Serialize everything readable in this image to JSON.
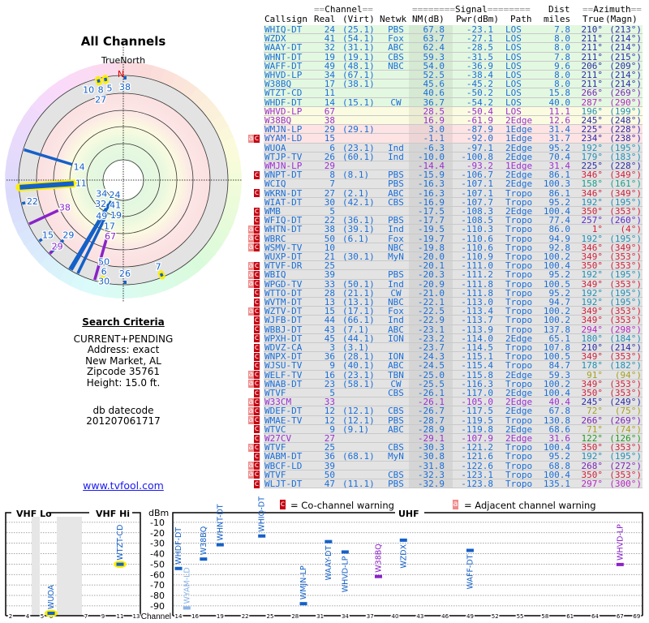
{
  "polar": {
    "title": "All Channels",
    "north_label": "TrueNorth",
    "north_mark": "N"
  },
  "search": {
    "heading": "Search Criteria",
    "lines": [
      "CURRENT+PENDING",
      "Address: exact",
      "New Market, AL",
      "Zipcode 35761",
      "Height: 15.0 ft."
    ],
    "db_label": "db datecode",
    "db_value": "201207061717"
  },
  "link": "www.tvfool.com",
  "table_header": {
    "group_channel": "Channel",
    "group_signal": "Signal",
    "group_dist": "Dist",
    "group_azimuth": "Azimuth",
    "callsign": "Callsign",
    "real": "Real",
    "virt": "(Virt)",
    "netwk": "Netwk",
    "nm": "NM(dB)",
    "pwr": "Pwr(dBm)",
    "path": "Path",
    "miles": "miles",
    "true": "True",
    "magn": "(Magn)"
  },
  "colors": {
    "blue": "#1a6ed8",
    "purple": "#9b2fd3",
    "navy": "#2b2ba8",
    "violet": "#7b22b8",
    "magenta": "#b526c0",
    "teal": "#1f8fb5",
    "red": "#d0203c",
    "teal_green": "#1a9e8a",
    "indigo": "#5a2ac8",
    "olive": "#a8a020",
    "green": "#1f9a1f",
    "cochannel": "#c40010",
    "adjacent": "#f08a8a"
  },
  "warnings": {
    "adjacent": "a",
    "cochannel": "c",
    "cochannel_text": "= Co-channel warning",
    "adjacent_text": "= Adjacent channel warning"
  },
  "stations": [
    {
      "call": "WHIQ-DT",
      "real": "24",
      "virt": "(25.1)",
      "net": "PBS",
      "nm": "67.8",
      "pwr": "-23.1",
      "path": "LOS",
      "dist": "7.8",
      "az": "210°",
      "mag": "(213°)",
      "bg": "green",
      "color": "blue",
      "az_color": "navy",
      "warn": ""
    },
    {
      "call": "WZDX",
      "real": "41",
      "virt": "(54.1)",
      "net": "Fox",
      "nm": "63.7",
      "pwr": "-27.1",
      "path": "LOS",
      "dist": "8.0",
      "az": "211°",
      "mag": "(214°)",
      "bg": "green",
      "color": "blue",
      "az_color": "navy",
      "warn": ""
    },
    {
      "call": "WAAY-DT",
      "real": "32",
      "virt": "(31.1)",
      "net": "ABC",
      "nm": "62.4",
      "pwr": "-28.5",
      "path": "LOS",
      "dist": "8.0",
      "az": "211°",
      "mag": "(214°)",
      "bg": "green",
      "color": "blue",
      "az_color": "navy",
      "warn": ""
    },
    {
      "call": "WHNT-DT",
      "real": "19",
      "virt": "(19.1)",
      "net": "CBS",
      "nm": "59.3",
      "pwr": "-31.5",
      "path": "LOS",
      "dist": "7.8",
      "az": "211°",
      "mag": "(215°)",
      "bg": "green",
      "color": "blue",
      "az_color": "navy",
      "warn": ""
    },
    {
      "call": "WAFF-DT",
      "real": "49",
      "virt": "(48.1)",
      "net": "NBC",
      "nm": "54.0",
      "pwr": "-36.9",
      "path": "LOS",
      "dist": "9.6",
      "az": "206°",
      "mag": "(209°)",
      "bg": "green",
      "color": "blue",
      "az_color": "navy",
      "warn": ""
    },
    {
      "call": "WHVD-LP",
      "real": "34",
      "virt": "(67.1)",
      "net": "",
      "nm": "52.5",
      "pwr": "-38.4",
      "path": "LOS",
      "dist": "8.0",
      "az": "211°",
      "mag": "(214°)",
      "bg": "green",
      "color": "blue",
      "az_color": "navy",
      "warn": ""
    },
    {
      "call": "W38BQ",
      "real": "17",
      "virt": "(38.1)",
      "net": "",
      "nm": "45.6",
      "pwr": "-45.2",
      "path": "LOS",
      "dist": "8.0",
      "az": "211°",
      "mag": "(214°)",
      "bg": "green",
      "color": "blue",
      "az_color": "navy",
      "warn": ""
    },
    {
      "call": "WTZT-CD",
      "real": "11",
      "virt": "",
      "net": "",
      "nm": "40.6",
      "pwr": "-50.2",
      "path": "LOS",
      "dist": "15.8",
      "az": "266°",
      "mag": "(269°)",
      "bg": "green",
      "color": "blue",
      "az_color": "violet",
      "warn": ""
    },
    {
      "call": "WHDF-DT",
      "real": "14",
      "virt": "(15.1)",
      "net": "CW",
      "nm": "36.7",
      "pwr": "-54.2",
      "path": "LOS",
      "dist": "40.0",
      "az": "287°",
      "mag": "(290°)",
      "bg": "green",
      "color": "blue",
      "az_color": "magenta",
      "warn": ""
    },
    {
      "call": "WHVD-LP",
      "real": "67",
      "virt": "",
      "net": "",
      "nm": "28.5",
      "pwr": "-50.4",
      "path": "LOS",
      "dist": "11.1",
      "az": "196°",
      "mag": "(199°)",
      "bg": "yellow",
      "color": "purple",
      "az_color": "teal",
      "warn": ""
    },
    {
      "call": "W38BQ",
      "real": "38",
      "virt": "",
      "net": "",
      "nm": "16.9",
      "pwr": "-61.9",
      "path": "2Edge",
      "dist": "12.6",
      "az": "245°",
      "mag": "(248°)",
      "bg": "yellow",
      "color": "purple",
      "az_color": "navy",
      "warn": ""
    },
    {
      "call": "WMJN-LP",
      "real": "29",
      "virt": "(29.1)",
      "net": "",
      "nm": "3.0",
      "pwr": "-87.9",
      "path": "1Edge",
      "dist": "31.4",
      "az": "225°",
      "mag": "(228°)",
      "bg": "pink",
      "color": "blue",
      "az_color": "navy",
      "warn": ""
    },
    {
      "call": "WYAM-LD",
      "real": "15",
      "virt": "",
      "net": "",
      "nm": "-1.1",
      "pwr": "-92.0",
      "path": "1Edge",
      "dist": "31.7",
      "az": "234°",
      "mag": "(238°)",
      "bg": "pink",
      "color": "blue",
      "az_color": "navy",
      "warn": "ac"
    },
    {
      "call": "WUOA",
      "real": "6",
      "virt": "(23.1)",
      "net": "Ind",
      "nm": "-6.3",
      "pwr": "-97.1",
      "path": "2Edge",
      "dist": "95.2",
      "az": "192°",
      "mag": "(195°)",
      "bg": "gray",
      "color": "blue",
      "az_color": "teal",
      "warn": ""
    },
    {
      "call": "WTJP-TV",
      "real": "26",
      "virt": "(60.1)",
      "net": "Ind",
      "nm": "-10.0",
      "pwr": "-100.8",
      "path": "2Edge",
      "dist": "70.4",
      "az": "179°",
      "mag": "(183°)",
      "bg": "gray",
      "color": "blue",
      "az_color": "teal",
      "warn": ""
    },
    {
      "call": "WMJN-LP",
      "real": "29",
      "virt": "",
      "net": "",
      "nm": "-14.4",
      "pwr": "-93.2",
      "path": "1Edge",
      "dist": "31.4",
      "az": "225°",
      "mag": "(228°)",
      "bg": "gray",
      "color": "purple",
      "az_color": "navy",
      "warn": ""
    },
    {
      "call": "WNPT-DT",
      "real": "8",
      "virt": "(8.1)",
      "net": "PBS",
      "nm": "-15.9",
      "pwr": "-106.7",
      "path": "2Edge",
      "dist": "86.1",
      "az": "346°",
      "mag": "(349°)",
      "bg": "gray",
      "color": "blue",
      "az_color": "red",
      "warn": "c"
    },
    {
      "call": "WCIQ",
      "real": "7",
      "virt": "",
      "net": "PBS",
      "nm": "-16.3",
      "pwr": "-107.1",
      "path": "2Edge",
      "dist": "100.3",
      "az": "158°",
      "mag": "(161°)",
      "bg": "gray",
      "color": "blue",
      "az_color": "teal_green",
      "warn": ""
    },
    {
      "call": "WKRN-DT",
      "real": "27",
      "virt": "(2.1)",
      "net": "ABC",
      "nm": "-16.3",
      "pwr": "-107.1",
      "path": "Tropo",
      "dist": "86.1",
      "az": "346°",
      "mag": "(349°)",
      "bg": "gray",
      "color": "blue",
      "az_color": "red",
      "warn": "c"
    },
    {
      "call": "WIAT-DT",
      "real": "30",
      "virt": "(42.1)",
      "net": "CBS",
      "nm": "-16.9",
      "pwr": "-107.7",
      "path": "Tropo",
      "dist": "95.2",
      "az": "192°",
      "mag": "(195°)",
      "bg": "gray",
      "color": "blue",
      "az_color": "teal",
      "warn": ""
    },
    {
      "call": "WMB",
      "real": "5",
      "virt": "",
      "net": "",
      "nm": "-17.5",
      "pwr": "-108.3",
      "path": "2Edge",
      "dist": "100.4",
      "az": "350°",
      "mag": "(353°)",
      "bg": "gray",
      "color": "blue",
      "az_color": "red",
      "warn": "c"
    },
    {
      "call": "WFIQ-DT",
      "real": "22",
      "virt": "(36.1)",
      "net": "PBS",
      "nm": "-17.7",
      "pwr": "-108.5",
      "path": "Tropo",
      "dist": "77.4",
      "az": "257°",
      "mag": "(260°)",
      "bg": "gray",
      "color": "blue",
      "az_color": "indigo",
      "warn": "c"
    },
    {
      "call": "WHTN-DT",
      "real": "38",
      "virt": "(39.1)",
      "net": "Ind",
      "nm": "-19.5",
      "pwr": "-110.3",
      "path": "Tropo",
      "dist": "86.0",
      "az": "1°",
      "mag": "(4°)",
      "bg": "gray",
      "color": "blue",
      "az_color": "red",
      "warn": "ac"
    },
    {
      "call": "WBRC",
      "real": "50",
      "virt": "(6.1)",
      "net": "Fox",
      "nm": "-19.7",
      "pwr": "-110.6",
      "path": "Tropo",
      "dist": "94.9",
      "az": "192°",
      "mag": "(195°)",
      "bg": "gray",
      "color": "blue",
      "az_color": "teal",
      "warn": "ac"
    },
    {
      "call": "WSMV-TV",
      "real": "10",
      "virt": "",
      "net": "NBC",
      "nm": "-19.8",
      "pwr": "-110.6",
      "path": "Tropo",
      "dist": "92.8",
      "az": "346°",
      "mag": "(349°)",
      "bg": "gray",
      "color": "blue",
      "az_color": "red",
      "warn": "ac"
    },
    {
      "call": "WUXP-DT",
      "real": "21",
      "virt": "(30.1)",
      "net": "MyN",
      "nm": "-20.0",
      "pwr": "-110.9",
      "path": "Tropo",
      "dist": "100.2",
      "az": "349°",
      "mag": "(353°)",
      "bg": "gray",
      "color": "blue",
      "az_color": "red",
      "warn": ""
    },
    {
      "call": "WTVF-DR",
      "real": "25",
      "virt": "",
      "net": "",
      "nm": "-20.1",
      "pwr": "-111.0",
      "path": "Tropo",
      "dist": "100.4",
      "az": "350°",
      "mag": "(353°)",
      "bg": "gray",
      "color": "blue",
      "az_color": "red",
      "warn": "ac"
    },
    {
      "call": "WBIQ",
      "real": "39",
      "virt": "",
      "net": "PBS",
      "nm": "-20.3",
      "pwr": "-111.2",
      "path": "Tropo",
      "dist": "95.2",
      "az": "192°",
      "mag": "(195°)",
      "bg": "gray",
      "color": "blue",
      "az_color": "teal",
      "warn": "ac"
    },
    {
      "call": "WPGD-TV",
      "real": "33",
      "virt": "(50.1)",
      "net": "Ind",
      "nm": "-20.9",
      "pwr": "-111.8",
      "path": "Tropo",
      "dist": "100.5",
      "az": "349°",
      "mag": "(353°)",
      "bg": "gray",
      "color": "blue",
      "az_color": "red",
      "warn": "ac"
    },
    {
      "call": "WTTO-DT",
      "real": "28",
      "virt": "(21.1)",
      "net": "CW",
      "nm": "-21.0",
      "pwr": "-111.8",
      "path": "Tropo",
      "dist": "95.2",
      "az": "192°",
      "mag": "(195°)",
      "bg": "gray",
      "color": "blue",
      "az_color": "teal",
      "warn": "c"
    },
    {
      "call": "WVTM-DT",
      "real": "13",
      "virt": "(13.1)",
      "net": "NBC",
      "nm": "-22.1",
      "pwr": "-113.0",
      "path": "Tropo",
      "dist": "94.7",
      "az": "192°",
      "mag": "(195°)",
      "bg": "gray",
      "color": "blue",
      "az_color": "teal",
      "warn": "c"
    },
    {
      "call": "WZTV-DT",
      "real": "15",
      "virt": "(17.1)",
      "net": "Fox",
      "nm": "-22.5",
      "pwr": "-113.4",
      "path": "Tropo",
      "dist": "100.2",
      "az": "349°",
      "mag": "(353°)",
      "bg": "gray",
      "color": "blue",
      "az_color": "red",
      "warn": "ac"
    },
    {
      "call": "WJFB-DT",
      "real": "44",
      "virt": "(66.1)",
      "net": "Ind",
      "nm": "-22.9",
      "pwr": "-113.7",
      "path": "Tropo",
      "dist": "100.2",
      "az": "349°",
      "mag": "(353°)",
      "bg": "gray",
      "color": "blue",
      "az_color": "red",
      "warn": "c"
    },
    {
      "call": "WBBJ-DT",
      "real": "43",
      "virt": "(7.1)",
      "net": "ABC",
      "nm": "-23.1",
      "pwr": "-113.9",
      "path": "Tropo",
      "dist": "137.8",
      "az": "294°",
      "mag": "(298°)",
      "bg": "gray",
      "color": "blue",
      "az_color": "magenta",
      "warn": "c"
    },
    {
      "call": "WPXH-DT",
      "real": "45",
      "virt": "(44.1)",
      "net": "ION",
      "nm": "-23.2",
      "pwr": "-114.0",
      "path": "2Edge",
      "dist": "65.1",
      "az": "180°",
      "mag": "(184°)",
      "bg": "gray",
      "color": "blue",
      "az_color": "teal",
      "warn": "c"
    },
    {
      "call": "WDVZ-CA",
      "real": "3",
      "virt": "(3.1)",
      "net": "",
      "nm": "-23.7",
      "pwr": "-114.5",
      "path": "Tropo",
      "dist": "107.8",
      "az": "210°",
      "mag": "(214°)",
      "bg": "gray",
      "color": "blue",
      "az_color": "navy",
      "warn": "c"
    },
    {
      "call": "WNPX-DT",
      "real": "36",
      "virt": "(28.1)",
      "net": "ION",
      "nm": "-24.3",
      "pwr": "-115.1",
      "path": "Tropo",
      "dist": "100.5",
      "az": "349°",
      "mag": "(353°)",
      "bg": "gray",
      "color": "blue",
      "az_color": "red",
      "warn": "c"
    },
    {
      "call": "WJSU-TV",
      "real": "9",
      "virt": "(40.1)",
      "net": "ABC",
      "nm": "-24.5",
      "pwr": "-115.4",
      "path": "Tropo",
      "dist": "84.7",
      "az": "178°",
      "mag": "(182°)",
      "bg": "gray",
      "color": "blue",
      "az_color": "teal",
      "warn": "c"
    },
    {
      "call": "WELF-TV",
      "real": "16",
      "virt": "(23.1)",
      "net": "TBN",
      "nm": "-25.0",
      "pwr": "-115.8",
      "path": "2Edge",
      "dist": "59.3",
      "az": "91°",
      "mag": "(94°)",
      "bg": "gray",
      "color": "blue",
      "az_color": "olive",
      "warn": "ac"
    },
    {
      "call": "WNAB-DT",
      "real": "23",
      "virt": "(58.1)",
      "net": "CW",
      "nm": "-25.5",
      "pwr": "-116.3",
      "path": "Tropo",
      "dist": "100.2",
      "az": "349°",
      "mag": "(353°)",
      "bg": "gray",
      "color": "blue",
      "az_color": "red",
      "warn": "ac"
    },
    {
      "call": "WTVF",
      "real": "5",
      "virt": "",
      "net": "CBS",
      "nm": "-26.1",
      "pwr": "-117.0",
      "path": "2Edge",
      "dist": "100.4",
      "az": "350°",
      "mag": "(353°)",
      "bg": "gray",
      "color": "blue",
      "az_color": "red",
      "warn": "c"
    },
    {
      "call": "W33CM",
      "real": "33",
      "virt": "",
      "net": "",
      "nm": "-26.1",
      "pwr": "-105.0",
      "path": "2Edge",
      "dist": "40.4",
      "az": "245°",
      "mag": "(249°)",
      "bg": "gray",
      "color": "purple",
      "az_color": "navy",
      "warn": "ac"
    },
    {
      "call": "WDEF-DT",
      "real": "12",
      "virt": "(12.1)",
      "net": "CBS",
      "nm": "-26.7",
      "pwr": "-117.5",
      "path": "2Edge",
      "dist": "67.8",
      "az": "72°",
      "mag": "(75°)",
      "bg": "gray",
      "color": "blue",
      "az_color": "olive",
      "warn": "ac"
    },
    {
      "call": "WMAE-TV",
      "real": "12",
      "virt": "(12.1)",
      "net": "PBS",
      "nm": "-28.7",
      "pwr": "-119.5",
      "path": "Tropo",
      "dist": "130.8",
      "az": "266°",
      "mag": "(269°)",
      "bg": "gray",
      "color": "blue",
      "az_color": "violet",
      "warn": "ac"
    },
    {
      "call": "WTVC",
      "real": "9",
      "virt": "(9.1)",
      "net": "ABC",
      "nm": "-28.9",
      "pwr": "-119.8",
      "path": "2Edge",
      "dist": "68.6",
      "az": "71°",
      "mag": "(74°)",
      "bg": "gray",
      "color": "blue",
      "az_color": "olive",
      "warn": "c"
    },
    {
      "call": "W27CV",
      "real": "27",
      "virt": "",
      "net": "",
      "nm": "-29.1",
      "pwr": "-107.9",
      "path": "2Edge",
      "dist": "31.6",
      "az": "122°",
      "mag": "(126°)",
      "bg": "gray",
      "color": "purple",
      "az_color": "green",
      "warn": "c"
    },
    {
      "call": "WTVF",
      "real": "25",
      "virt": "",
      "net": "CBS",
      "nm": "-30.3",
      "pwr": "-121.2",
      "path": "Tropo",
      "dist": "100.4",
      "az": "350°",
      "mag": "(353°)",
      "bg": "gray",
      "color": "blue",
      "az_color": "red",
      "warn": "ac"
    },
    {
      "call": "WABM-DT",
      "real": "36",
      "virt": "(68.1)",
      "net": "MyN",
      "nm": "-30.8",
      "pwr": "-121.6",
      "path": "Tropo",
      "dist": "95.2",
      "az": "192°",
      "mag": "(195°)",
      "bg": "gray",
      "color": "blue",
      "az_color": "teal",
      "warn": "c"
    },
    {
      "call": "WBCF-LD",
      "real": "39",
      "virt": "",
      "net": "",
      "nm": "-31.8",
      "pwr": "-122.6",
      "path": "Tropo",
      "dist": "68.8",
      "az": "268°",
      "mag": "(272°)",
      "bg": "gray",
      "color": "blue",
      "az_color": "violet",
      "warn": "ac"
    },
    {
      "call": "WTVF",
      "real": "50",
      "virt": "",
      "net": "CBS",
      "nm": "-32.3",
      "pwr": "-123.1",
      "path": "Tropo",
      "dist": "100.4",
      "az": "350°",
      "mag": "(353°)",
      "bg": "gray",
      "color": "blue",
      "az_color": "red",
      "warn": "ac"
    },
    {
      "call": "WLJT-DT",
      "real": "47",
      "virt": "(11.1)",
      "net": "PBS",
      "nm": "-32.9",
      "pwr": "-123.8",
      "path": "Tropo",
      "dist": "135.1",
      "az": "297°",
      "mag": "(300°)",
      "bg": "gray",
      "color": "blue",
      "az_color": "magenta",
      "warn": "c"
    }
  ],
  "spectrum": {
    "ylabel": "dBm",
    "xlabel": "Channel",
    "band_vhf_lo": "VHF Lo",
    "band_vhf_hi": "VHF Hi",
    "band_uhf": "UHF",
    "y_ticks": [
      "-10",
      "-20",
      "-30",
      "-40",
      "-50",
      "-60",
      "-70",
      "-80",
      "-90"
    ],
    "vhf_ticks": [
      "2",
      "4",
      "5",
      "6",
      "7",
      "9",
      "11",
      "13"
    ],
    "uhf_ticks": [
      "14",
      "16",
      "19",
      "22",
      "25",
      "28",
      "31",
      "34",
      "37",
      "40",
      "43",
      "46",
      "49",
      "52",
      "55",
      "58",
      "61",
      "64",
      "67",
      "69"
    ],
    "points": [
      {
        "call": "WUOA",
        "channel": 6,
        "dbm": -97.1,
        "color": "blue"
      },
      {
        "call": "WTZT-CD",
        "channel": 11,
        "dbm": -50.2,
        "color": "blue"
      },
      {
        "call": "WHDF-DT",
        "channel": 14,
        "dbm": -54.2,
        "color": "blue"
      },
      {
        "call": "WYAM-LD",
        "channel": 15,
        "dbm": -92.0,
        "color": "light"
      },
      {
        "call": "W38BQ",
        "channel": 17,
        "dbm": -45.2,
        "color": "blue"
      },
      {
        "call": "WHNT-DT",
        "channel": 19,
        "dbm": -31.5,
        "color": "blue"
      },
      {
        "call": "WHIQ-DT",
        "channel": 24,
        "dbm": -23.1,
        "color": "blue"
      },
      {
        "call": "WMJN-LP",
        "channel": 29,
        "dbm": -87.9,
        "color": "blue"
      },
      {
        "call": "WAAY-DT",
        "channel": 32,
        "dbm": -28.5,
        "color": "blue"
      },
      {
        "call": "WHVD-LP",
        "channel": 34,
        "dbm": -38.4,
        "color": "blue"
      },
      {
        "call": "W38BQ",
        "channel": 38,
        "dbm": -61.9,
        "color": "purple"
      },
      {
        "call": "WZDX",
        "channel": 41,
        "dbm": -27.1,
        "color": "blue"
      },
      {
        "call": "WAFF-DT",
        "channel": 49,
        "dbm": -36.9,
        "color": "blue"
      },
      {
        "call": "WHVD-LP",
        "channel": 67,
        "dbm": -50.4,
        "color": "purple"
      }
    ]
  }
}
